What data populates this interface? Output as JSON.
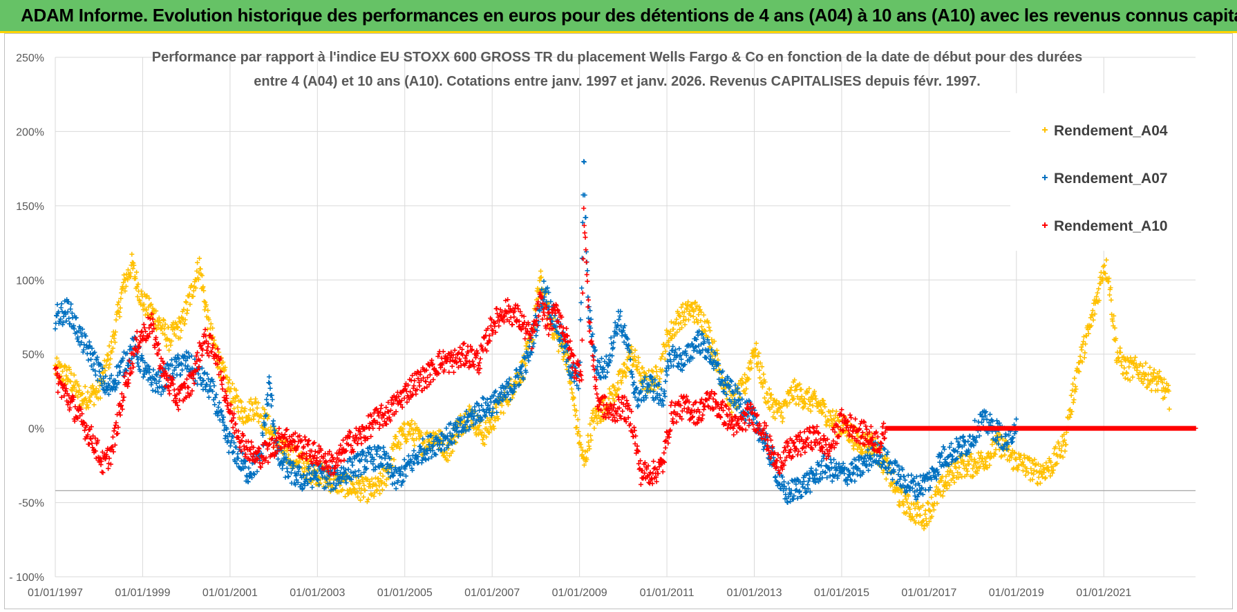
{
  "banner": {
    "title": "ADAM Informe. Evolution historique des performances en euros pour des détentions de 4 ans (A04) à 10 ans (A10) avec les revenus connus capitalisés"
  },
  "colors": {
    "a04": "#ffc000",
    "a07": "#0070c0",
    "a10": "#ff0000",
    "banner": "#66c266",
    "grid": "#d9d9d9"
  },
  "chart_data": {
    "type": "scatter",
    "title_line1": "Performance par rapport à l'indice EU STOXX 600 GROSS TR  du placement Wells Fargo & Co en fonction de la date de début pour des durées",
    "title_line2": "entre 4 (A04) et 10 ans (A10).  Cotations entre janv. 1997 et janv. 2026. Revenus CAPITALISES depuis févr. 1997.",
    "xlabel": "",
    "ylabel": "",
    "x_range": [
      1997.0,
      2023.1
    ],
    "ylim": [
      -100,
      250
    ],
    "y_ticks": [
      250,
      200,
      150,
      100,
      50,
      0,
      -50,
      -100
    ],
    "y_tick_labels": [
      "250%",
      "200%",
      "150%",
      "100%",
      "50%",
      "0%",
      "-50%",
      "- 100%"
    ],
    "x_ticks": [
      1997,
      1999,
      2001,
      2003,
      2005,
      2007,
      2009,
      2011,
      2013,
      2015,
      2017,
      2019,
      2021
    ],
    "x_tick_labels": [
      "01/01/1997",
      "01/01/1999",
      "01/01/2001",
      "01/01/2003",
      "01/01/2005",
      "01/01/2007",
      "01/01/2009",
      "01/01/2011",
      "01/01/2013",
      "01/01/2015",
      "01/01/2017",
      "01/01/2019",
      "01/01/2021"
    ],
    "legend_position": "top-right",
    "series": [
      {
        "name": "Rendement_A04",
        "color": "#ffc000",
        "x_end": 2022.5,
        "x": [
          1997.0,
          1997.3,
          1997.6,
          1998.0,
          1998.3,
          1998.55,
          1998.75,
          1999.0,
          1999.3,
          1999.6,
          1999.9,
          2000.1,
          2000.3,
          2000.5,
          2000.8,
          2001.0,
          2001.3,
          2001.6,
          2001.9,
          2002.2,
          2002.5,
          2002.8,
          2003.0,
          2003.3,
          2003.6,
          2003.9,
          2004.2,
          2004.4,
          2004.6,
          2004.8,
          2005.1,
          2005.4,
          2005.7,
          2006.0,
          2006.2,
          2006.5,
          2006.8,
          2007.1,
          2007.4,
          2007.7,
          2007.9,
          2008.1,
          2008.3,
          2008.5,
          2008.7,
          2008.9,
          2009.1,
          2009.3,
          2009.6,
          2009.9,
          2010.2,
          2010.5,
          2010.8,
          2011.0,
          2011.3,
          2011.6,
          2011.9,
          2012.2,
          2012.5,
          2012.8,
          2013.0,
          2013.3,
          2013.6,
          2013.9,
          2014.2,
          2014.5,
          2014.8,
          2015.1,
          2015.4,
          2015.7,
          2016.0,
          2016.3,
          2016.6,
          2016.9,
          2017.1,
          2017.4,
          2017.7,
          2018.0,
          2018.3,
          2018.6,
          2018.9,
          2019.2,
          2019.5,
          2019.8,
          2020.1,
          2020.4,
          2020.7,
          2020.9,
          2021.0,
          2021.1,
          2021.3,
          2021.5,
          2021.8,
          2022.0,
          2022.3,
          2022.5
        ],
        "y": [
          40,
          35,
          20,
          25,
          55,
          95,
          110,
          85,
          75,
          60,
          70,
          90,
          110,
          70,
          40,
          25,
          10,
          15,
          0,
          -15,
          -20,
          -28,
          -30,
          -35,
          -38,
          -40,
          -42,
          -40,
          -30,
          -10,
          0,
          -10,
          -5,
          -15,
          0,
          10,
          -5,
          10,
          25,
          40,
          60,
          100,
          75,
          60,
          50,
          10,
          -25,
          5,
          15,
          30,
          50,
          30,
          35,
          60,
          75,
          80,
          70,
          40,
          15,
          30,
          55,
          20,
          10,
          25,
          20,
          15,
          5,
          0,
          -10,
          -10,
          -25,
          -45,
          -55,
          -60,
          -50,
          -35,
          -25,
          -25,
          -20,
          -10,
          -20,
          -25,
          -30,
          -25,
          -10,
          40,
          70,
          95,
          110,
          105,
          50,
          40,
          40,
          35,
          30,
          20
        ]
      },
      {
        "name": "Rendement_A07",
        "color": "#0070c0",
        "x_end": 2019.0,
        "x": [
          1997.0,
          1997.3,
          1997.6,
          1997.9,
          1998.2,
          1998.5,
          1998.8,
          1999.1,
          1999.4,
          1999.7,
          2000.0,
          2000.3,
          2000.6,
          2000.9,
          2001.1,
          2001.4,
          2001.7,
          2001.9,
          2002.1,
          2002.4,
          2002.7,
          2003.0,
          2003.3,
          2003.6,
          2003.9,
          2004.2,
          2004.5,
          2004.8,
          2005.1,
          2005.4,
          2005.7,
          2006.0,
          2006.3,
          2006.6,
          2006.9,
          2007.2,
          2007.5,
          2007.8,
          2008.0,
          2008.2,
          2008.4,
          2008.6,
          2008.8,
          2009.0,
          2009.1,
          2009.2,
          2009.4,
          2009.6,
          2009.9,
          2010.1,
          2010.3,
          2010.6,
          2010.9,
          2011.1,
          2011.4,
          2011.7,
          2012.0,
          2012.3,
          2012.6,
          2012.9,
          2013.1,
          2013.4,
          2013.7,
          2014.0,
          2014.3,
          2014.6,
          2014.9,
          2015.2,
          2015.5,
          2015.8,
          2016.1,
          2016.4,
          2016.7,
          2017.0,
          2017.3,
          2017.6,
          2017.9,
          2018.2,
          2018.5,
          2018.8,
          2019.0
        ],
        "y": [
          75,
          80,
          60,
          45,
          25,
          40,
          55,
          35,
          30,
          40,
          45,
          35,
          25,
          -5,
          -15,
          -30,
          -20,
          30,
          -20,
          -30,
          -35,
          -30,
          -35,
          -30,
          -25,
          -20,
          -20,
          -35,
          -25,
          -15,
          -10,
          -5,
          0,
          10,
          15,
          20,
          30,
          45,
          70,
          95,
          75,
          60,
          40,
          30,
          180,
          80,
          40,
          40,
          75,
          55,
          20,
          30,
          20,
          50,
          45,
          60,
          50,
          30,
          20,
          10,
          0,
          -20,
          -45,
          -40,
          -35,
          -25,
          -30,
          -30,
          -25,
          -15,
          -25,
          -35,
          -40,
          -35,
          -20,
          -15,
          -10,
          5,
          0,
          -10,
          5
        ]
      },
      {
        "name": "Rendement_A10",
        "color": "#ff0000",
        "x_end": 2023.1,
        "x": [
          1997.0,
          1997.3,
          1997.6,
          1997.9,
          1998.1,
          1998.3,
          1998.6,
          1998.9,
          1999.2,
          1999.5,
          1999.8,
          2000.1,
          2000.4,
          2000.7,
          2001.0,
          2001.3,
          2001.6,
          2001.9,
          2002.2,
          2002.5,
          2002.8,
          2003.1,
          2003.4,
          2003.7,
          2004.0,
          2004.3,
          2004.6,
          2004.9,
          2005.2,
          2005.5,
          2005.8,
          2006.1,
          2006.4,
          2006.7,
          2007.0,
          2007.3,
          2007.6,
          2007.9,
          2008.1,
          2008.3,
          2008.5,
          2008.7,
          2008.9,
          2009.05,
          2009.1,
          2009.2,
          2009.4,
          2009.7,
          2010.0,
          2010.2,
          2010.4,
          2010.7,
          2010.9,
          2011.1,
          2011.4,
          2011.7,
          2012.0,
          2012.3,
          2012.6,
          2012.9,
          2013.2,
          2013.5,
          2013.8,
          2014.1,
          2014.4,
          2014.7,
          2015.0,
          2015.3,
          2015.6,
          2015.9,
          2016.0,
          2016.5,
          2017.0,
          2018.0,
          2019.0,
          2020.0,
          2021.0,
          2022.0,
          2023.1
        ],
        "y": [
          35,
          20,
          5,
          -10,
          -25,
          -15,
          30,
          60,
          70,
          35,
          20,
          30,
          60,
          50,
          10,
          -10,
          -20,
          -15,
          -5,
          -10,
          -15,
          -20,
          -25,
          -10,
          -5,
          5,
          10,
          20,
          30,
          35,
          45,
          45,
          50,
          45,
          70,
          80,
          75,
          60,
          85,
          70,
          80,
          60,
          40,
          40,
          150,
          80,
          20,
          10,
          15,
          5,
          -30,
          -30,
          -25,
          10,
          15,
          10,
          20,
          10,
          0,
          10,
          0,
          -25,
          -15,
          -10,
          -5,
          -15,
          5,
          0,
          -5,
          -10,
          0,
          0,
          0,
          0,
          0,
          0,
          0,
          0,
          0
        ]
      }
    ]
  }
}
